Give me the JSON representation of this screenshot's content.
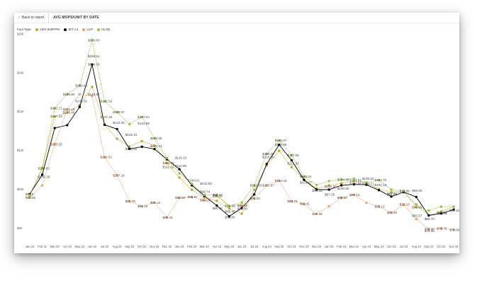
{
  "header": {
    "back_label": "Back to report",
    "title": "AVG MOPS/UNIT BY DATE"
  },
  "legend": {
    "title": "Fuel Type",
    "items": [
      "ADO 500PPM",
      "JET A1",
      "ULP",
      "ULSD"
    ]
  },
  "colors": {
    "ADO 500PPM": "#c9a227",
    "JET A1": "#000000",
    "ULP": "#f4a06b",
    "ULSD": "#8dc63f"
  },
  "chart_data": {
    "type": "line",
    "title": "AVG MOPS/UNIT BY DATE",
    "legend_title": "Fuel Type",
    "legend_position": "top-left",
    "grid": false,
    "ylim": [
      75,
      180
    ],
    "yticks": [
      80,
      100,
      120,
      140,
      160,
      180
    ],
    "ytick_labels": [
      "$80",
      "$100",
      "$120",
      "$140",
      "$160",
      "$180"
    ],
    "categories": [
      "Jan 22",
      "Feb 22",
      "Mar 22",
      "Apr 22",
      "May 22",
      "Jun 22",
      "Jul 22",
      "Aug 22",
      "Sep 22",
      "Oct 22",
      "Nov 22",
      "Dec 22",
      "Jan 23",
      "Feb 23",
      "Mar 23",
      "Apr 23",
      "May 23",
      "Jun 23",
      "Jul 23",
      "Aug 23",
      "Sep 23",
      "Oct 23",
      "Nov 23",
      "Dec 23",
      "Jan 24",
      "Feb 24",
      "Mar 24",
      "Apr 24",
      "May 24",
      "Jun 24",
      "Jul 24",
      "Aug 24",
      "Sep 24",
      "Oct 24",
      "Nov 24"
    ],
    "series": [
      {
        "name": "ADO 500PPM",
        "values": [
          96.5,
          110.8,
          137.4,
          139.5,
          143.4,
          152.7,
          133.3,
          126.0,
          122.0,
          124.8,
          122.5,
          113.5,
          106.0,
          99.7,
          95.7,
          94.0,
          90.0,
          87.4,
          99.7,
          112.3,
          119.8,
          111.4,
          105.0,
          100.4,
          102.0,
          103.0,
          104.1,
          103.4,
          100.0,
          98.5,
          98.5,
          92.1,
          86.5,
          88.5,
          91.0
        ]
      },
      {
        "name": "JET A1",
        "values": [
          97.5,
          107.5,
          131.5,
          133.0,
          142.4,
          164.3,
          133.2,
          131.0,
          120.8,
          121.9,
          120.7,
          115.4,
          110.3,
          102.0,
          96.6,
          91.6,
          86.0,
          90.3,
          97.3,
          113.0,
          122.9,
          114.9,
          104.8,
          99.8,
          99.8,
          102.0,
          102.5,
          102.3,
          99.5,
          96.2,
          98.5,
          96.0,
          86.5,
          87.5,
          89.5
        ]
      },
      {
        "name": "ULP",
        "values": [
          95.7,
          102.0,
          123.2,
          141.2,
          148.9,
          148.0,
          116.5,
          107.2,
          93.8,
          91.2,
          93.1,
          85.5,
          95.6,
          95.97,
          94.3,
          96.5,
          91.2,
          91.6,
          95.2,
          102.0,
          104.4,
          93.8,
          92.4,
          87.3,
          91.2,
          95.6,
          97.1,
          93.0,
          91.1,
          87.9,
          92.1,
          84.7,
          79.4,
          79.75,
          79.1
        ]
      },
      {
        "name": "ULSD",
        "values": [
          97.0,
          111.0,
          141.7,
          149.0,
          153.4,
          176.8,
          145.3,
          139.7,
          133.5,
          137.2,
          126.3,
          116.1,
          108.2,
          102.8,
          97.1,
          97.1,
          91.4,
          93.1,
          101.9,
          118.2,
          125.1,
          117.6,
          106.5,
          102.2,
          104.2,
          105.0,
          105.5,
          103.5,
          104.7,
          99.8,
          99.0,
          90.7,
          89.0,
          91.0,
          91.0
        ]
      }
    ],
    "data_labels": [
      {
        "category": "Jan 22",
        "value": 97.5,
        "text": "$97.5"
      },
      {
        "category": "Jan 22",
        "value": 95.68,
        "text": "$95.68"
      },
      {
        "category": "Feb 22",
        "value": 110.82,
        "text": "$110.82"
      },
      {
        "category": "Feb 22",
        "value": 106.29,
        "text": "$106.29"
      },
      {
        "category": "Mar 22",
        "value": 141.71,
        "text": "$141.71"
      },
      {
        "category": "Mar 22",
        "value": 137.44,
        "text": "$137.44"
      },
      {
        "category": "Mar 22",
        "value": 123.2,
        "text": "$123.20"
      },
      {
        "category": "Apr 22",
        "value": 148.8,
        "text": "$148.80"
      },
      {
        "category": "Apr 22",
        "value": 139.46,
        "text": "$139.46"
      },
      {
        "category": "Apr 22",
        "value": 141.18,
        "text": "$141.18"
      },
      {
        "category": "May 22",
        "value": 153.44,
        "text": "$153.44"
      },
      {
        "category": "May 22",
        "value": 145.32,
        "text": "$145.32"
      },
      {
        "category": "Jun 22",
        "value": 176.8,
        "text": "$176.80"
      },
      {
        "category": "Jun 22",
        "value": 168.51,
        "text": "$168.51"
      },
      {
        "category": "Jun 22",
        "value": 164.29,
        "text": "$164.29"
      },
      {
        "category": "Jun 22",
        "value": 148.82,
        "text": "$148.82"
      },
      {
        "category": "Jul 22",
        "value": 145.32,
        "text": "$145.32"
      },
      {
        "category": "Jul 22",
        "value": 137.18,
        "text": "$137.18"
      },
      {
        "category": "Jul 22",
        "value": 116.53,
        "text": "$116.53"
      },
      {
        "category": "Aug 22",
        "value": 139.67,
        "text": "$139.67"
      },
      {
        "category": "Aug 22",
        "value": 134.26,
        "text": "$134.26"
      },
      {
        "category": "Aug 22",
        "value": 107.16,
        "text": "$107.16"
      },
      {
        "category": "Sep 22",
        "value": 128.1,
        "text": "$128.10"
      },
      {
        "category": "Sep 22",
        "value": 120.82,
        "text": "$120.82"
      },
      {
        "category": "Sep 22",
        "value": 93.78,
        "text": "$93.78"
      },
      {
        "category": "Oct 22",
        "value": 137.24,
        "text": "$137.24"
      },
      {
        "category": "Oct 22",
        "value": 133.86,
        "text": "$133.86"
      },
      {
        "category": "Oct 22",
        "value": 91.19,
        "text": "$91.19"
      },
      {
        "category": "Nov 22",
        "value": 126.29,
        "text": "$126.29"
      },
      {
        "category": "Nov 22",
        "value": 122.13,
        "text": "$122.13"
      },
      {
        "category": "Nov 22",
        "value": 93.13,
        "text": "$93.13"
      },
      {
        "category": "Dec 22",
        "value": 113.45,
        "text": "$113.45"
      },
      {
        "category": "Dec 22",
        "value": 111.42,
        "text": "$111.42"
      },
      {
        "category": "Dec 22",
        "value": 85.45,
        "text": "$85.45"
      },
      {
        "category": "Jan 23",
        "value": 116.13,
        "text": "$116.13"
      },
      {
        "category": "Jan 23",
        "value": 111.95,
        "text": "$111.95"
      },
      {
        "category": "Jan 23",
        "value": 95.59,
        "text": "$95.59"
      },
      {
        "category": "Feb 23",
        "value": 104.61,
        "text": "$104.61"
      },
      {
        "category": "Feb 23",
        "value": 95.97,
        "text": "$95.97"
      },
      {
        "category": "Mar 23",
        "value": 102.83,
        "text": "$102.83"
      },
      {
        "category": "Mar 23",
        "value": 98.74,
        "text": "$98.74"
      },
      {
        "category": "Mar 23",
        "value": 94.29,
        "text": "$94.29"
      },
      {
        "category": "Apr 23",
        "value": 97.1,
        "text": "$97.10"
      },
      {
        "category": "Apr 23",
        "value": 96.54,
        "text": "$96.54"
      },
      {
        "category": "Apr 23",
        "value": 90.15,
        "text": "$90.15"
      },
      {
        "category": "May 23",
        "value": 91.42,
        "text": "$91.42"
      },
      {
        "category": "May 23",
        "value": 88.48,
        "text": "$88.48"
      },
      {
        "category": "May 23",
        "value": 85.6,
        "text": "$85.60"
      },
      {
        "category": "Jun 23",
        "value": 91.62,
        "text": "$91.62"
      },
      {
        "category": "Jun 23",
        "value": 90.0,
        "text": "$90.00"
      },
      {
        "category": "Jul 23",
        "value": 101.93,
        "text": "$101.93"
      },
      {
        "category": "Jul 23",
        "value": 95.2,
        "text": "$95.20"
      },
      {
        "category": "Aug 23",
        "value": 118.2,
        "text": "$118.20"
      },
      {
        "category": "Aug 23",
        "value": 116.6,
        "text": "$116.60"
      },
      {
        "category": "Aug 23",
        "value": 101.97,
        "text": "$101.97"
      },
      {
        "category": "Sep 23",
        "value": 125.07,
        "text": "$125.07"
      },
      {
        "category": "Sep 23",
        "value": 122.86,
        "text": "$122.86"
      },
      {
        "category": "Sep 23",
        "value": 104.43,
        "text": "$104.43"
      },
      {
        "category": "Oct 23",
        "value": 117.55,
        "text": "$117.55"
      },
      {
        "category": "Oct 23",
        "value": 113.33,
        "text": "$113.33"
      },
      {
        "category": "Oct 23",
        "value": 93.78,
        "text": "$93.78"
      },
      {
        "category": "Nov 23",
        "value": 106.51,
        "text": "$106.51"
      },
      {
        "category": "Nov 23",
        "value": 103.47,
        "text": "$103.47"
      },
      {
        "category": "Nov 23",
        "value": 92.41,
        "text": "$92.41"
      },
      {
        "category": "Dec 23",
        "value": 99.18,
        "text": "$99.18"
      },
      {
        "category": "Dec 23",
        "value": 87.28,
        "text": "$87.28"
      },
      {
        "category": "Jan 24",
        "value": 101.52,
        "text": "$101.52"
      },
      {
        "category": "Jan 24",
        "value": 97.25,
        "text": "$97.25"
      },
      {
        "category": "Feb 24",
        "value": 104.98,
        "text": "$104.98"
      },
      {
        "category": "Feb 24",
        "value": 100.3,
        "text": "$100.30"
      },
      {
        "category": "Feb 24",
        "value": 95.6,
        "text": "$95.60"
      },
      {
        "category": "Mar 24",
        "value": 104.52,
        "text": "$104.52"
      },
      {
        "category": "Mar 24",
        "value": 102.88,
        "text": "$102.88"
      },
      {
        "category": "Mar 24",
        "value": 97.14,
        "text": "$97.14"
      },
      {
        "category": "Apr 24",
        "value": 105.52,
        "text": "$105.52"
      },
      {
        "category": "Apr 24",
        "value": 102.71,
        "text": "$102.71"
      },
      {
        "category": "May 24",
        "value": 104.7,
        "text": "$104.70"
      },
      {
        "category": "May 24",
        "value": 102.13,
        "text": "$102.13"
      },
      {
        "category": "May 24",
        "value": 91.13,
        "text": "$91.13"
      },
      {
        "category": "Jun 24",
        "value": 97.64,
        "text": "$97.64"
      },
      {
        "category": "Jun 24",
        "value": 97.33,
        "text": "$97.33"
      },
      {
        "category": "Jun 24",
        "value": 87.93,
        "text": "$87.93"
      },
      {
        "category": "Jul 24",
        "value": 98.99,
        "text": "$98.99"
      },
      {
        "category": "Jul 24",
        "value": 92.13,
        "text": "$92.13"
      },
      {
        "category": "Aug 24",
        "value": 99.3,
        "text": "$99.30"
      },
      {
        "category": "Aug 24",
        "value": 90.69,
        "text": "$90.69"
      },
      {
        "category": "Aug 24",
        "value": 86.37,
        "text": "$86.37"
      },
      {
        "category": "Sep 24",
        "value": 84.7,
        "text": "$84.70"
      },
      {
        "category": "Sep 24",
        "value": 79.36,
        "text": "$79.36"
      },
      {
        "category": "Sep 24",
        "value": 78.45,
        "text": "$78.45"
      },
      {
        "category": "Oct 24",
        "value": 87.63,
        "text": "$87.63"
      },
      {
        "category": "Oct 24",
        "value": 87.93,
        "text": "$87.93"
      },
      {
        "category": "Oct 24",
        "value": 79.75,
        "text": "$79.75"
      },
      {
        "category": "Nov 24",
        "value": 89.1,
        "text": "$89.10"
      },
      {
        "category": "Nov 24",
        "value": 79.09,
        "text": "$79.09"
      }
    ]
  }
}
